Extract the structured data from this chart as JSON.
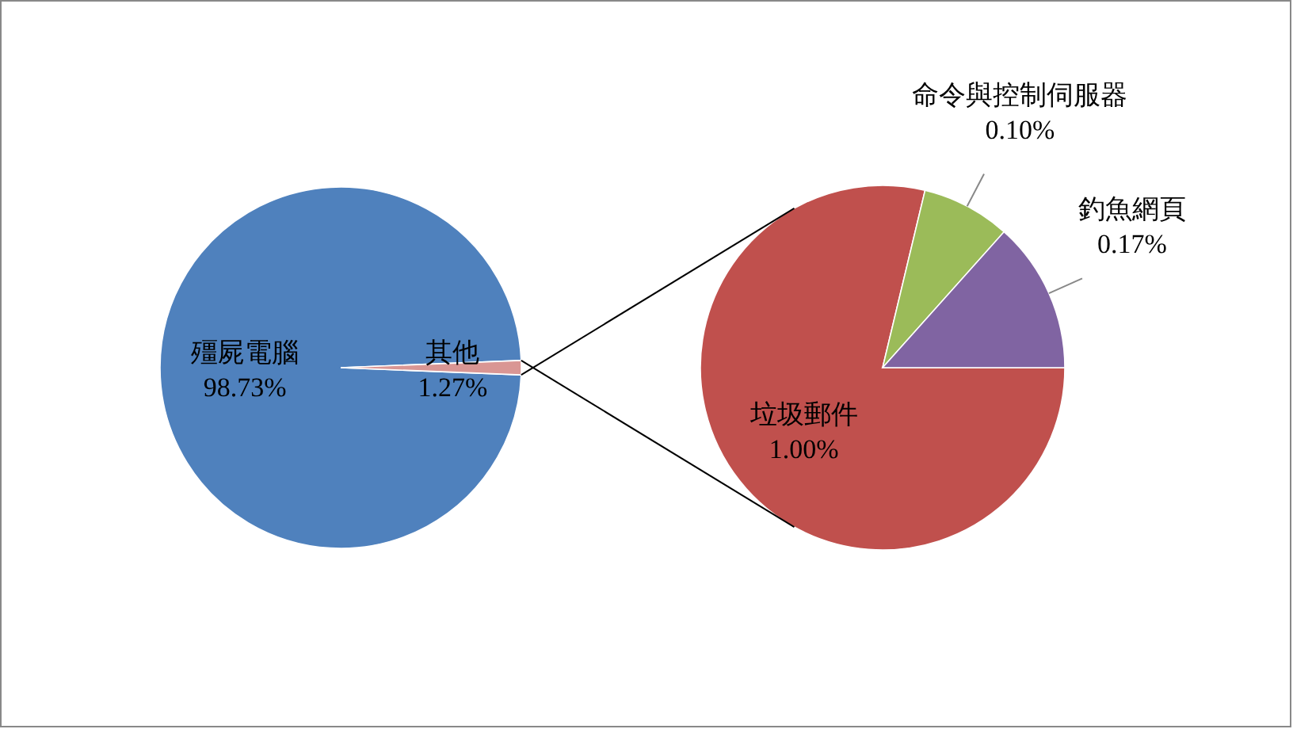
{
  "chart_data": [
    {
      "type": "pie",
      "categories": [
        "殭屍電腦",
        "其他"
      ],
      "values": [
        98.73,
        1.27
      ],
      "colors": [
        "#4f81bd",
        "#d99694"
      ],
      "value_labels": [
        "98.73%",
        "1.27%"
      ]
    },
    {
      "type": "pie",
      "categories": [
        "垃圾郵件",
        "命令與控制伺服器",
        "釣魚網頁"
      ],
      "values": [
        1.0,
        0.1,
        0.17
      ],
      "colors": [
        "#c0504d",
        "#9bbb59",
        "#8064a2"
      ],
      "value_labels": [
        "1.00%",
        "0.10%",
        "0.17%"
      ]
    }
  ]
}
